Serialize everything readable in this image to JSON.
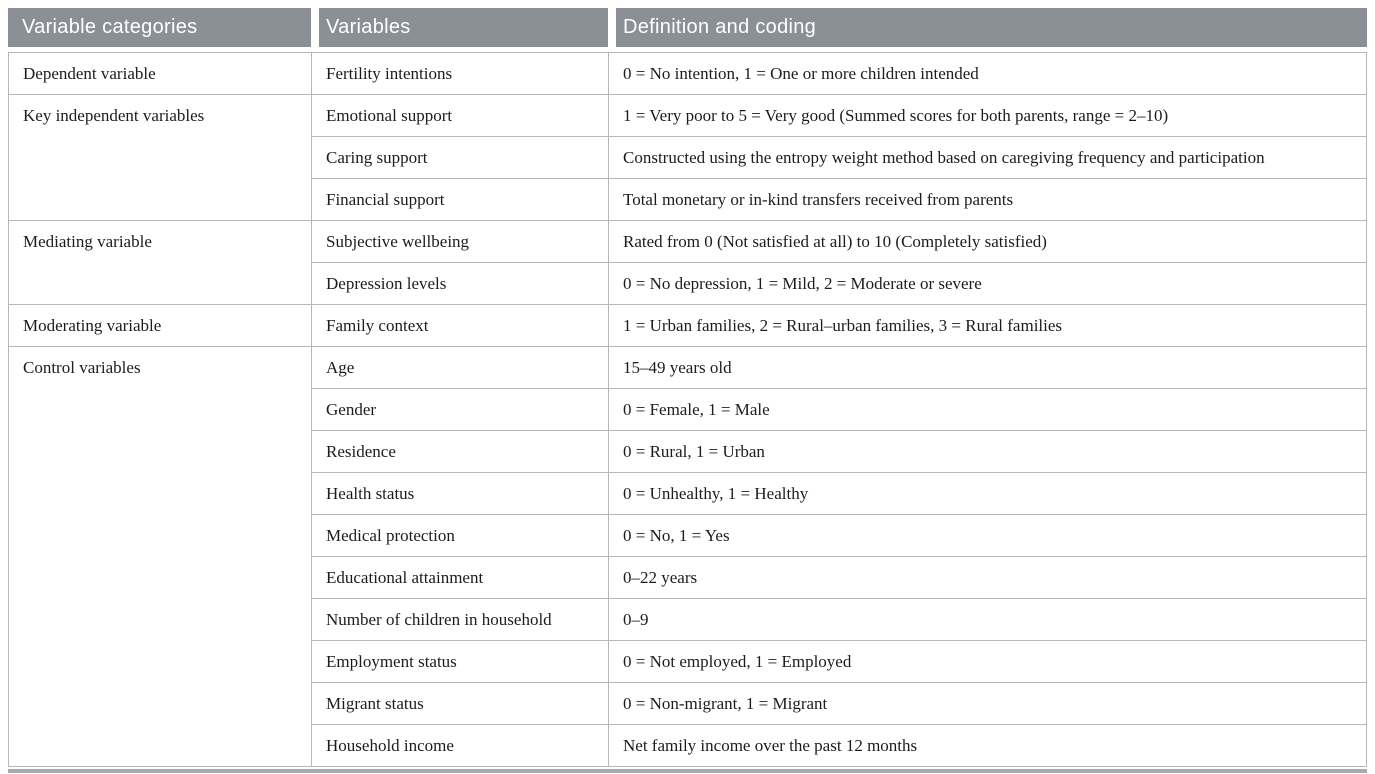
{
  "table": {
    "columns": [
      "Variable categories",
      "Variables",
      "Definition and coding"
    ],
    "groups": [
      {
        "category": "Dependent variable",
        "rows": [
          {
            "variable": "Fertility intentions",
            "definition": "0 = No intention, 1 = One or more children intended"
          }
        ]
      },
      {
        "category": "Key independent variables",
        "rows": [
          {
            "variable": "Emotional support",
            "definition": "1 = Very poor to 5 = Very good (Summed scores for both parents, range = 2–10)"
          },
          {
            "variable": "Caring support",
            "definition": "Constructed using the entropy weight method based on caregiving frequency and participation"
          },
          {
            "variable": "Financial support",
            "definition": "Total monetary or in-kind transfers received from parents"
          }
        ]
      },
      {
        "category": "Mediating variable",
        "rows": [
          {
            "variable": "Subjective wellbeing",
            "definition": "Rated from 0 (Not satisfied at all) to 10 (Completely satisfied)"
          },
          {
            "variable": "Depression levels",
            "definition": "0 = No depression, 1 = Mild, 2 = Moderate or severe"
          }
        ]
      },
      {
        "category": "Moderating variable",
        "rows": [
          {
            "variable": "Family context",
            "definition": "1 = Urban families, 2 = Rural–urban families, 3 = Rural families"
          }
        ]
      },
      {
        "category": "Control variables",
        "rows": [
          {
            "variable": "Age",
            "definition": "15–49 years old"
          },
          {
            "variable": "Gender",
            "definition": "0 = Female, 1 = Male"
          },
          {
            "variable": "Residence",
            "definition": "0 = Rural, 1 = Urban"
          },
          {
            "variable": "Health status",
            "definition": "0 = Unhealthy, 1 = Healthy"
          },
          {
            "variable": "Medical protection",
            "definition": "0 = No, 1 = Yes"
          },
          {
            "variable": "Educational attainment",
            "definition": "0–22 years"
          },
          {
            "variable": "Number of children in household",
            "definition": "0–9"
          },
          {
            "variable": "Employment status",
            "definition": "0 = Not employed, 1 = Employed"
          },
          {
            "variable": "Migrant status",
            "definition": "0 = Non-migrant, 1 = Migrant"
          },
          {
            "variable": "Household income",
            "definition": "Net family income over the past 12 months"
          }
        ]
      }
    ]
  },
  "colors": {
    "header_background": "#8b9096",
    "header_text": "#ffffff",
    "grid_line": "#b4b8ba",
    "bottom_bar": "#a6aaac",
    "body_text": "#1c1c1c"
  }
}
